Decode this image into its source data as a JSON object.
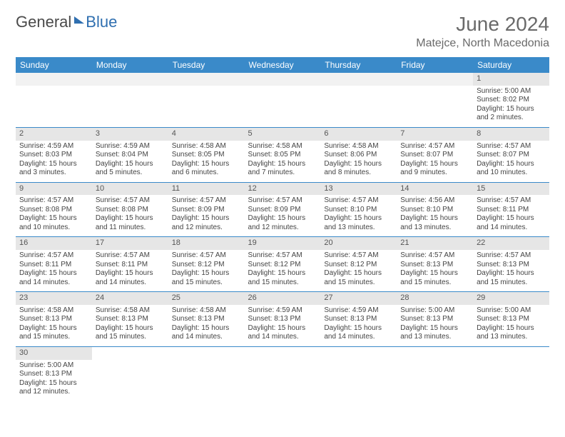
{
  "brand": {
    "part1": "General",
    "part2": "Blue"
  },
  "header": {
    "title": "June 2024",
    "location": "Matejce, North Macedonia"
  },
  "colors": {
    "header_bg": "#3a8ac9",
    "header_text": "#ffffff",
    "daynum_bg": "#e6e6e6",
    "border": "#3a8ac9",
    "title_color": "#6a6a6a"
  },
  "weekdays": [
    "Sunday",
    "Monday",
    "Tuesday",
    "Wednesday",
    "Thursday",
    "Friday",
    "Saturday"
  ],
  "weeks": [
    [
      null,
      null,
      null,
      null,
      null,
      null,
      {
        "n": "1",
        "sr": "Sunrise: 5:00 AM",
        "ss": "Sunset: 8:02 PM",
        "d1": "Daylight: 15 hours",
        "d2": "and 2 minutes."
      }
    ],
    [
      {
        "n": "2",
        "sr": "Sunrise: 4:59 AM",
        "ss": "Sunset: 8:03 PM",
        "d1": "Daylight: 15 hours",
        "d2": "and 3 minutes."
      },
      {
        "n": "3",
        "sr": "Sunrise: 4:59 AM",
        "ss": "Sunset: 8:04 PM",
        "d1": "Daylight: 15 hours",
        "d2": "and 5 minutes."
      },
      {
        "n": "4",
        "sr": "Sunrise: 4:58 AM",
        "ss": "Sunset: 8:05 PM",
        "d1": "Daylight: 15 hours",
        "d2": "and 6 minutes."
      },
      {
        "n": "5",
        "sr": "Sunrise: 4:58 AM",
        "ss": "Sunset: 8:05 PM",
        "d1": "Daylight: 15 hours",
        "d2": "and 7 minutes."
      },
      {
        "n": "6",
        "sr": "Sunrise: 4:58 AM",
        "ss": "Sunset: 8:06 PM",
        "d1": "Daylight: 15 hours",
        "d2": "and 8 minutes."
      },
      {
        "n": "7",
        "sr": "Sunrise: 4:57 AM",
        "ss": "Sunset: 8:07 PM",
        "d1": "Daylight: 15 hours",
        "d2": "and 9 minutes."
      },
      {
        "n": "8",
        "sr": "Sunrise: 4:57 AM",
        "ss": "Sunset: 8:07 PM",
        "d1": "Daylight: 15 hours",
        "d2": "and 10 minutes."
      }
    ],
    [
      {
        "n": "9",
        "sr": "Sunrise: 4:57 AM",
        "ss": "Sunset: 8:08 PM",
        "d1": "Daylight: 15 hours",
        "d2": "and 10 minutes."
      },
      {
        "n": "10",
        "sr": "Sunrise: 4:57 AM",
        "ss": "Sunset: 8:08 PM",
        "d1": "Daylight: 15 hours",
        "d2": "and 11 minutes."
      },
      {
        "n": "11",
        "sr": "Sunrise: 4:57 AM",
        "ss": "Sunset: 8:09 PM",
        "d1": "Daylight: 15 hours",
        "d2": "and 12 minutes."
      },
      {
        "n": "12",
        "sr": "Sunrise: 4:57 AM",
        "ss": "Sunset: 8:09 PM",
        "d1": "Daylight: 15 hours",
        "d2": "and 12 minutes."
      },
      {
        "n": "13",
        "sr": "Sunrise: 4:57 AM",
        "ss": "Sunset: 8:10 PM",
        "d1": "Daylight: 15 hours",
        "d2": "and 13 minutes."
      },
      {
        "n": "14",
        "sr": "Sunrise: 4:56 AM",
        "ss": "Sunset: 8:10 PM",
        "d1": "Daylight: 15 hours",
        "d2": "and 13 minutes."
      },
      {
        "n": "15",
        "sr": "Sunrise: 4:57 AM",
        "ss": "Sunset: 8:11 PM",
        "d1": "Daylight: 15 hours",
        "d2": "and 14 minutes."
      }
    ],
    [
      {
        "n": "16",
        "sr": "Sunrise: 4:57 AM",
        "ss": "Sunset: 8:11 PM",
        "d1": "Daylight: 15 hours",
        "d2": "and 14 minutes."
      },
      {
        "n": "17",
        "sr": "Sunrise: 4:57 AM",
        "ss": "Sunset: 8:11 PM",
        "d1": "Daylight: 15 hours",
        "d2": "and 14 minutes."
      },
      {
        "n": "18",
        "sr": "Sunrise: 4:57 AM",
        "ss": "Sunset: 8:12 PM",
        "d1": "Daylight: 15 hours",
        "d2": "and 15 minutes."
      },
      {
        "n": "19",
        "sr": "Sunrise: 4:57 AM",
        "ss": "Sunset: 8:12 PM",
        "d1": "Daylight: 15 hours",
        "d2": "and 15 minutes."
      },
      {
        "n": "20",
        "sr": "Sunrise: 4:57 AM",
        "ss": "Sunset: 8:12 PM",
        "d1": "Daylight: 15 hours",
        "d2": "and 15 minutes."
      },
      {
        "n": "21",
        "sr": "Sunrise: 4:57 AM",
        "ss": "Sunset: 8:13 PM",
        "d1": "Daylight: 15 hours",
        "d2": "and 15 minutes."
      },
      {
        "n": "22",
        "sr": "Sunrise: 4:57 AM",
        "ss": "Sunset: 8:13 PM",
        "d1": "Daylight: 15 hours",
        "d2": "and 15 minutes."
      }
    ],
    [
      {
        "n": "23",
        "sr": "Sunrise: 4:58 AM",
        "ss": "Sunset: 8:13 PM",
        "d1": "Daylight: 15 hours",
        "d2": "and 15 minutes."
      },
      {
        "n": "24",
        "sr": "Sunrise: 4:58 AM",
        "ss": "Sunset: 8:13 PM",
        "d1": "Daylight: 15 hours",
        "d2": "and 15 minutes."
      },
      {
        "n": "25",
        "sr": "Sunrise: 4:58 AM",
        "ss": "Sunset: 8:13 PM",
        "d1": "Daylight: 15 hours",
        "d2": "and 14 minutes."
      },
      {
        "n": "26",
        "sr": "Sunrise: 4:59 AM",
        "ss": "Sunset: 8:13 PM",
        "d1": "Daylight: 15 hours",
        "d2": "and 14 minutes."
      },
      {
        "n": "27",
        "sr": "Sunrise: 4:59 AM",
        "ss": "Sunset: 8:13 PM",
        "d1": "Daylight: 15 hours",
        "d2": "and 14 minutes."
      },
      {
        "n": "28",
        "sr": "Sunrise: 5:00 AM",
        "ss": "Sunset: 8:13 PM",
        "d1": "Daylight: 15 hours",
        "d2": "and 13 minutes."
      },
      {
        "n": "29",
        "sr": "Sunrise: 5:00 AM",
        "ss": "Sunset: 8:13 PM",
        "d1": "Daylight: 15 hours",
        "d2": "and 13 minutes."
      }
    ],
    [
      {
        "n": "30",
        "sr": "Sunrise: 5:00 AM",
        "ss": "Sunset: 8:13 PM",
        "d1": "Daylight: 15 hours",
        "d2": "and 12 minutes."
      },
      null,
      null,
      null,
      null,
      null,
      null
    ]
  ]
}
